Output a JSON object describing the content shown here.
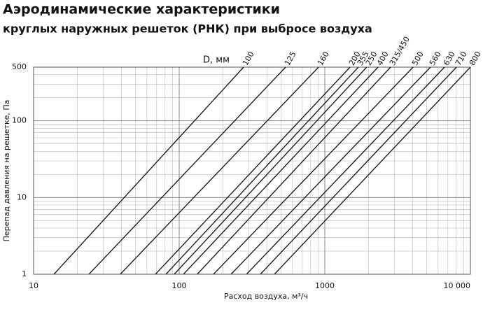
{
  "chart_data": {
    "type": "line",
    "title": "Аэродинамические характеристики",
    "subtitle": "круглых наружных решеток (РНК) при выбросе воздуха",
    "legend_title": "D, мм",
    "xlabel": "Расход воздуха, м³/ч",
    "ylabel": "Перепад давления на решетке, Па",
    "log_x": true,
    "log_y": true,
    "grid": true,
    "color": "#111111",
    "xlim": [
      10,
      10000
    ],
    "ylim": [
      1,
      500
    ],
    "xticks": [
      10,
      100,
      1000,
      {
        "value": 10000,
        "label": "10 000"
      }
    ],
    "yticks": [
      1,
      10,
      100,
      500
    ],
    "series": [
      {
        "name": "100",
        "x": [
          13.8,
          277
        ],
        "values": [
          1,
          500
        ]
      },
      {
        "name": "125",
        "x": [
          24,
          538
        ],
        "values": [
          1,
          500
        ]
      },
      {
        "name": "160",
        "x": [
          39.4,
          906
        ],
        "values": [
          1,
          500
        ]
      },
      {
        "name": "200",
        "x": [
          68.7,
          1490
        ],
        "values": [
          1,
          500
        ]
      },
      {
        "name": "355",
        "x": [
          81.1,
          1700
        ],
        "values": [
          1,
          500
        ]
      },
      {
        "name": "250",
        "x": [
          92.5,
          1940
        ],
        "values": [
          1,
          500
        ]
      },
      {
        "name": "400",
        "x": [
          107,
          2320
        ],
        "values": [
          1,
          500
        ]
      },
      {
        "name": "315/450",
        "x": [
          133,
          2830
        ],
        "values": [
          1,
          500
        ]
      },
      {
        "name": "500",
        "x": [
          172,
          4040
        ],
        "values": [
          1,
          500
        ]
      },
      {
        "name": "560",
        "x": [
          227,
          5320
        ],
        "values": [
          1,
          500
        ]
      },
      {
        "name": "630",
        "x": [
          290,
          6640
        ],
        "values": [
          1,
          500
        ]
      },
      {
        "name": "710",
        "x": [
          361,
          8020
        ],
        "values": [
          1,
          500
        ]
      },
      {
        "name": "800",
        "x": [
          451,
          10000
        ],
        "values": [
          1,
          500
        ]
      }
    ]
  }
}
